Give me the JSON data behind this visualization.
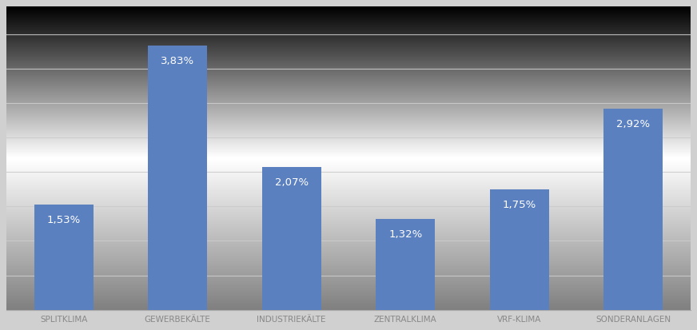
{
  "categories": [
    "SPLITKLIMA",
    "GEWERBEKÄLTE",
    "INDUSTRIEKÄLTE",
    "ZENTRALKLIMA",
    "VRF-KLIMA",
    "SONDERANLAGEN"
  ],
  "values": [
    1.53,
    3.83,
    2.07,
    1.32,
    1.75,
    2.92
  ],
  "labels": [
    "1,53%",
    "3,83%",
    "2,07%",
    "1,32%",
    "1,75%",
    "2,92%"
  ],
  "bar_color": "#5b80c0",
  "label_color": "#ffffff",
  "label_fontsize": 9.5,
  "tick_label_fontsize": 7.5,
  "tick_label_color": "#888888",
  "ylim": [
    0,
    4.4
  ],
  "grid_color": "#cccccc",
  "grid_linewidth": 0.8,
  "bg_top": "#d0d0d0",
  "bg_mid": "#f8f8f8",
  "bg_bottom": "#d8d8d8",
  "fig_bg": "#d0d0d0",
  "bar_width": 0.52
}
